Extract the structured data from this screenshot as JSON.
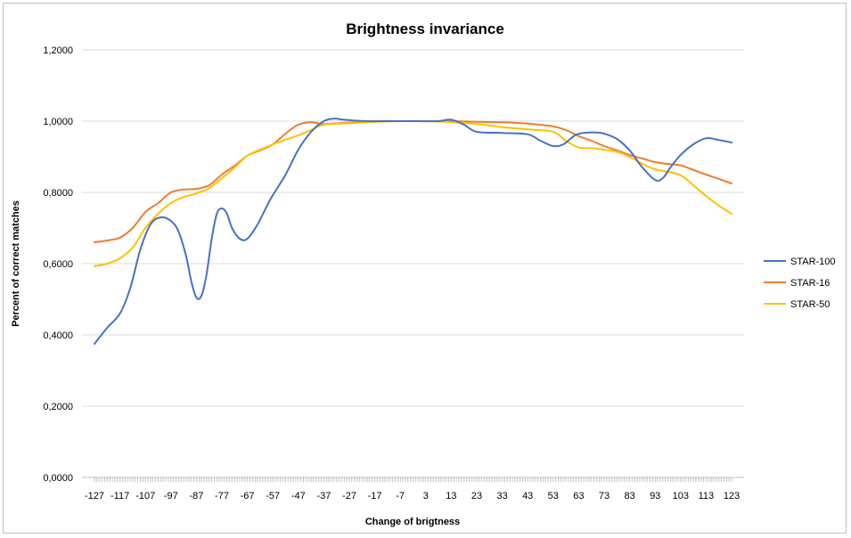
{
  "chart_data": {
    "type": "line",
    "title": "Brightness invariance",
    "xlabel": "Change of brigtness",
    "ylabel": "Percent of correct matches",
    "xlim": [
      -127,
      123
    ],
    "ylim": [
      0,
      1.2
    ],
    "y_ticks": [
      "0,0000",
      "0,2000",
      "0,4000",
      "0,6000",
      "0,8000",
      "1,0000",
      "1,2000"
    ],
    "x_tick_labels": [
      "-127",
      "-117",
      "-107",
      "-97",
      "-87",
      "-77",
      "-67",
      "-57",
      "-47",
      "-37",
      "-27",
      "-17",
      "-7",
      "3",
      "13",
      "23",
      "33",
      "43",
      "53",
      "63",
      "73",
      "83",
      "93",
      "103",
      "113",
      "123"
    ],
    "grid": "horizontal",
    "legend_position": "right",
    "series": [
      {
        "name": "STAR-100",
        "color": "#4472C4",
        "points": [
          [
            -127,
            0.375
          ],
          [
            -122,
            0.42
          ],
          [
            -117,
            0.46
          ],
          [
            -113,
            0.53
          ],
          [
            -109,
            0.64
          ],
          [
            -105,
            0.71
          ],
          [
            -101,
            0.73
          ],
          [
            -97,
            0.72
          ],
          [
            -94,
            0.69
          ],
          [
            -91,
            0.62
          ],
          [
            -89,
            0.55
          ],
          [
            -87,
            0.505
          ],
          [
            -85,
            0.51
          ],
          [
            -83,
            0.57
          ],
          [
            -81,
            0.67
          ],
          [
            -79,
            0.74
          ],
          [
            -77,
            0.755
          ],
          [
            -75,
            0.74
          ],
          [
            -73,
            0.7
          ],
          [
            -70,
            0.67
          ],
          [
            -67,
            0.67
          ],
          [
            -63,
            0.71
          ],
          [
            -58,
            0.78
          ],
          [
            -52,
            0.85
          ],
          [
            -47,
            0.92
          ],
          [
            -42,
            0.97
          ],
          [
            -37,
            1.0
          ],
          [
            -33,
            1.007
          ],
          [
            -29,
            1.004
          ],
          [
            -20,
            1.0
          ],
          [
            -7,
            1.0
          ],
          [
            0,
            1.0
          ],
          [
            8,
            1.0
          ],
          [
            13,
            1.004
          ],
          [
            18,
            0.99
          ],
          [
            23,
            0.97
          ],
          [
            33,
            0.967
          ],
          [
            43,
            0.963
          ],
          [
            48,
            0.945
          ],
          [
            53,
            0.93
          ],
          [
            57,
            0.935
          ],
          [
            62,
            0.962
          ],
          [
            67,
            0.968
          ],
          [
            70,
            0.968
          ],
          [
            73,
            0.965
          ],
          [
            78,
            0.95
          ],
          [
            83,
            0.918
          ],
          [
            88,
            0.87
          ],
          [
            93,
            0.835
          ],
          [
            96,
            0.84
          ],
          [
            99,
            0.87
          ],
          [
            103,
            0.905
          ],
          [
            108,
            0.935
          ],
          [
            113,
            0.952
          ],
          [
            118,
            0.947
          ],
          [
            123,
            0.94
          ]
        ]
      },
      {
        "name": "STAR-16",
        "color": "#ED7D31",
        "points": [
          [
            -127,
            0.66
          ],
          [
            -122,
            0.665
          ],
          [
            -117,
            0.673
          ],
          [
            -112,
            0.7
          ],
          [
            -107,
            0.745
          ],
          [
            -102,
            0.77
          ],
          [
            -97,
            0.8
          ],
          [
            -92,
            0.808
          ],
          [
            -87,
            0.81
          ],
          [
            -82,
            0.82
          ],
          [
            -77,
            0.85
          ],
          [
            -72,
            0.875
          ],
          [
            -67,
            0.903
          ],
          [
            -62,
            0.918
          ],
          [
            -57,
            0.935
          ],
          [
            -52,
            0.965
          ],
          [
            -47,
            0.99
          ],
          [
            -42,
            0.997
          ],
          [
            -37,
            0.992
          ],
          [
            -27,
            0.996
          ],
          [
            -17,
            1.0
          ],
          [
            -7,
            1.0
          ],
          [
            3,
            1.0
          ],
          [
            13,
            1.0
          ],
          [
            23,
            0.998
          ],
          [
            33,
            0.997
          ],
          [
            43,
            0.993
          ],
          [
            53,
            0.985
          ],
          [
            58,
            0.975
          ],
          [
            63,
            0.958
          ],
          [
            68,
            0.945
          ],
          [
            73,
            0.93
          ],
          [
            78,
            0.918
          ],
          [
            83,
            0.905
          ],
          [
            88,
            0.895
          ],
          [
            93,
            0.885
          ],
          [
            98,
            0.88
          ],
          [
            103,
            0.876
          ],
          [
            108,
            0.863
          ],
          [
            113,
            0.85
          ],
          [
            118,
            0.838
          ],
          [
            123,
            0.825
          ]
        ]
      },
      {
        "name": "STAR-50",
        "color": "#FFC000",
        "points": [
          [
            -127,
            0.593
          ],
          [
            -122,
            0.6
          ],
          [
            -117,
            0.615
          ],
          [
            -112,
            0.645
          ],
          [
            -107,
            0.7
          ],
          [
            -102,
            0.74
          ],
          [
            -97,
            0.77
          ],
          [
            -92,
            0.787
          ],
          [
            -87,
            0.797
          ],
          [
            -82,
            0.812
          ],
          [
            -77,
            0.84
          ],
          [
            -72,
            0.87
          ],
          [
            -67,
            0.903
          ],
          [
            -62,
            0.92
          ],
          [
            -57,
            0.935
          ],
          [
            -52,
            0.948
          ],
          [
            -47,
            0.96
          ],
          [
            -42,
            0.975
          ],
          [
            -37,
            0.99
          ],
          [
            -27,
            0.994
          ],
          [
            -17,
            0.998
          ],
          [
            -7,
            1.0
          ],
          [
            3,
            1.0
          ],
          [
            13,
            0.997
          ],
          [
            23,
            0.992
          ],
          [
            33,
            0.983
          ],
          [
            43,
            0.977
          ],
          [
            53,
            0.97
          ],
          [
            58,
            0.945
          ],
          [
            63,
            0.926
          ],
          [
            68,
            0.924
          ],
          [
            73,
            0.92
          ],
          [
            78,
            0.914
          ],
          [
            83,
            0.9
          ],
          [
            88,
            0.88
          ],
          [
            93,
            0.865
          ],
          [
            98,
            0.858
          ],
          [
            103,
            0.848
          ],
          [
            108,
            0.82
          ],
          [
            113,
            0.79
          ],
          [
            118,
            0.763
          ],
          [
            123,
            0.74
          ]
        ]
      }
    ]
  }
}
